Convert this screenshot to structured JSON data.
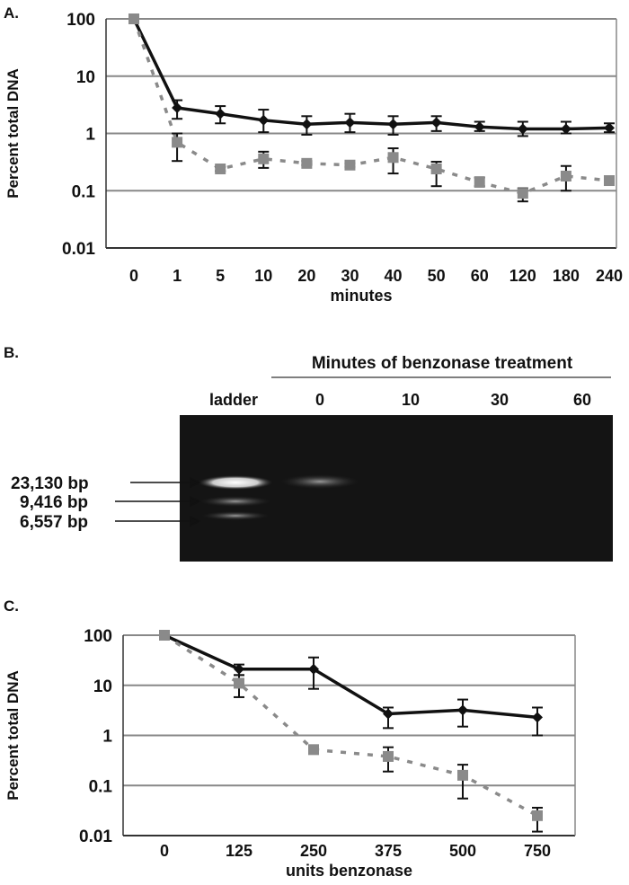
{
  "chart_data": [
    {
      "panel": "A.",
      "type": "line",
      "yscale": "log",
      "ylim": [
        0.01,
        100
      ],
      "ylabel": "Percent total DNA",
      "xlabel": "minutes",
      "yticks": [
        "100",
        "10",
        "1",
        "0.1",
        "0.01"
      ],
      "ytick_values": [
        100,
        10,
        1,
        0.1,
        0.01
      ],
      "categories": [
        "0",
        "1",
        "5",
        "10",
        "20",
        "30",
        "40",
        "50",
        "60",
        "120",
        "180",
        "240"
      ],
      "series": [
        {
          "name": "black-solid",
          "color": "#111111",
          "values": [
            100,
            2.8,
            2.2,
            1.7,
            1.45,
            1.55,
            1.45,
            1.55,
            1.3,
            1.2,
            1.2,
            1.25
          ],
          "err_low": [
            100,
            1.8,
            1.5,
            1.05,
            0.95,
            1.05,
            0.95,
            1.1,
            1.1,
            0.9,
            1.0,
            1.05
          ],
          "err_high": [
            100,
            3.8,
            3.0,
            2.6,
            2.0,
            2.2,
            2.0,
            2.0,
            1.6,
            1.6,
            1.6,
            1.5
          ]
        },
        {
          "name": "gray-dashed",
          "color": "#8a8a8a",
          "values": [
            100,
            0.7,
            0.24,
            0.36,
            0.3,
            0.28,
            0.38,
            0.24,
            0.14,
            0.09,
            0.18,
            0.15
          ],
          "err_low": [
            100,
            0.33,
            0.22,
            0.25,
            0.28,
            0.26,
            0.2,
            0.12,
            0.12,
            0.065,
            0.1,
            0.14
          ],
          "err_high": [
            100,
            1.0,
            0.26,
            0.48,
            0.33,
            0.3,
            0.55,
            0.32,
            0.17,
            0.11,
            0.27,
            0.16
          ]
        }
      ]
    },
    {
      "panel": "C.",
      "type": "line",
      "yscale": "log",
      "ylim": [
        0.01,
        100
      ],
      "ylabel": "Percent total DNA",
      "xlabel": "units benzonase",
      "yticks": [
        "100",
        "10",
        "1",
        "0.1",
        "0.01"
      ],
      "ytick_values": [
        100,
        10,
        1,
        0.1,
        0.01
      ],
      "categories": [
        "0",
        "125",
        "250",
        "375",
        "500",
        "750"
      ],
      "series": [
        {
          "name": "black-solid",
          "color": "#111111",
          "values": [
            100,
            21,
            21,
            2.7,
            3.2,
            2.3
          ],
          "err_low": [
            100,
            16,
            8.5,
            1.4,
            1.5,
            1.0
          ],
          "err_high": [
            100,
            26,
            36,
            3.6,
            5.2,
            3.6
          ]
        },
        {
          "name": "gray-dashed",
          "color": "#8a8a8a",
          "values": [
            100,
            11,
            0.52,
            0.38,
            0.16,
            0.025
          ],
          "err_low": [
            100,
            5.8,
            0.45,
            0.19,
            0.055,
            0.012
          ],
          "err_high": [
            100,
            16,
            0.6,
            0.58,
            0.26,
            0.036
          ]
        }
      ]
    }
  ],
  "gel": {
    "panel": "B.",
    "header": "Minutes of benzonase treatment",
    "lanes": [
      "ladder",
      "0",
      "10",
      "30",
      "60"
    ],
    "markers": [
      "23,130 bp",
      "9,416 bp",
      "6,557 bp"
    ]
  }
}
